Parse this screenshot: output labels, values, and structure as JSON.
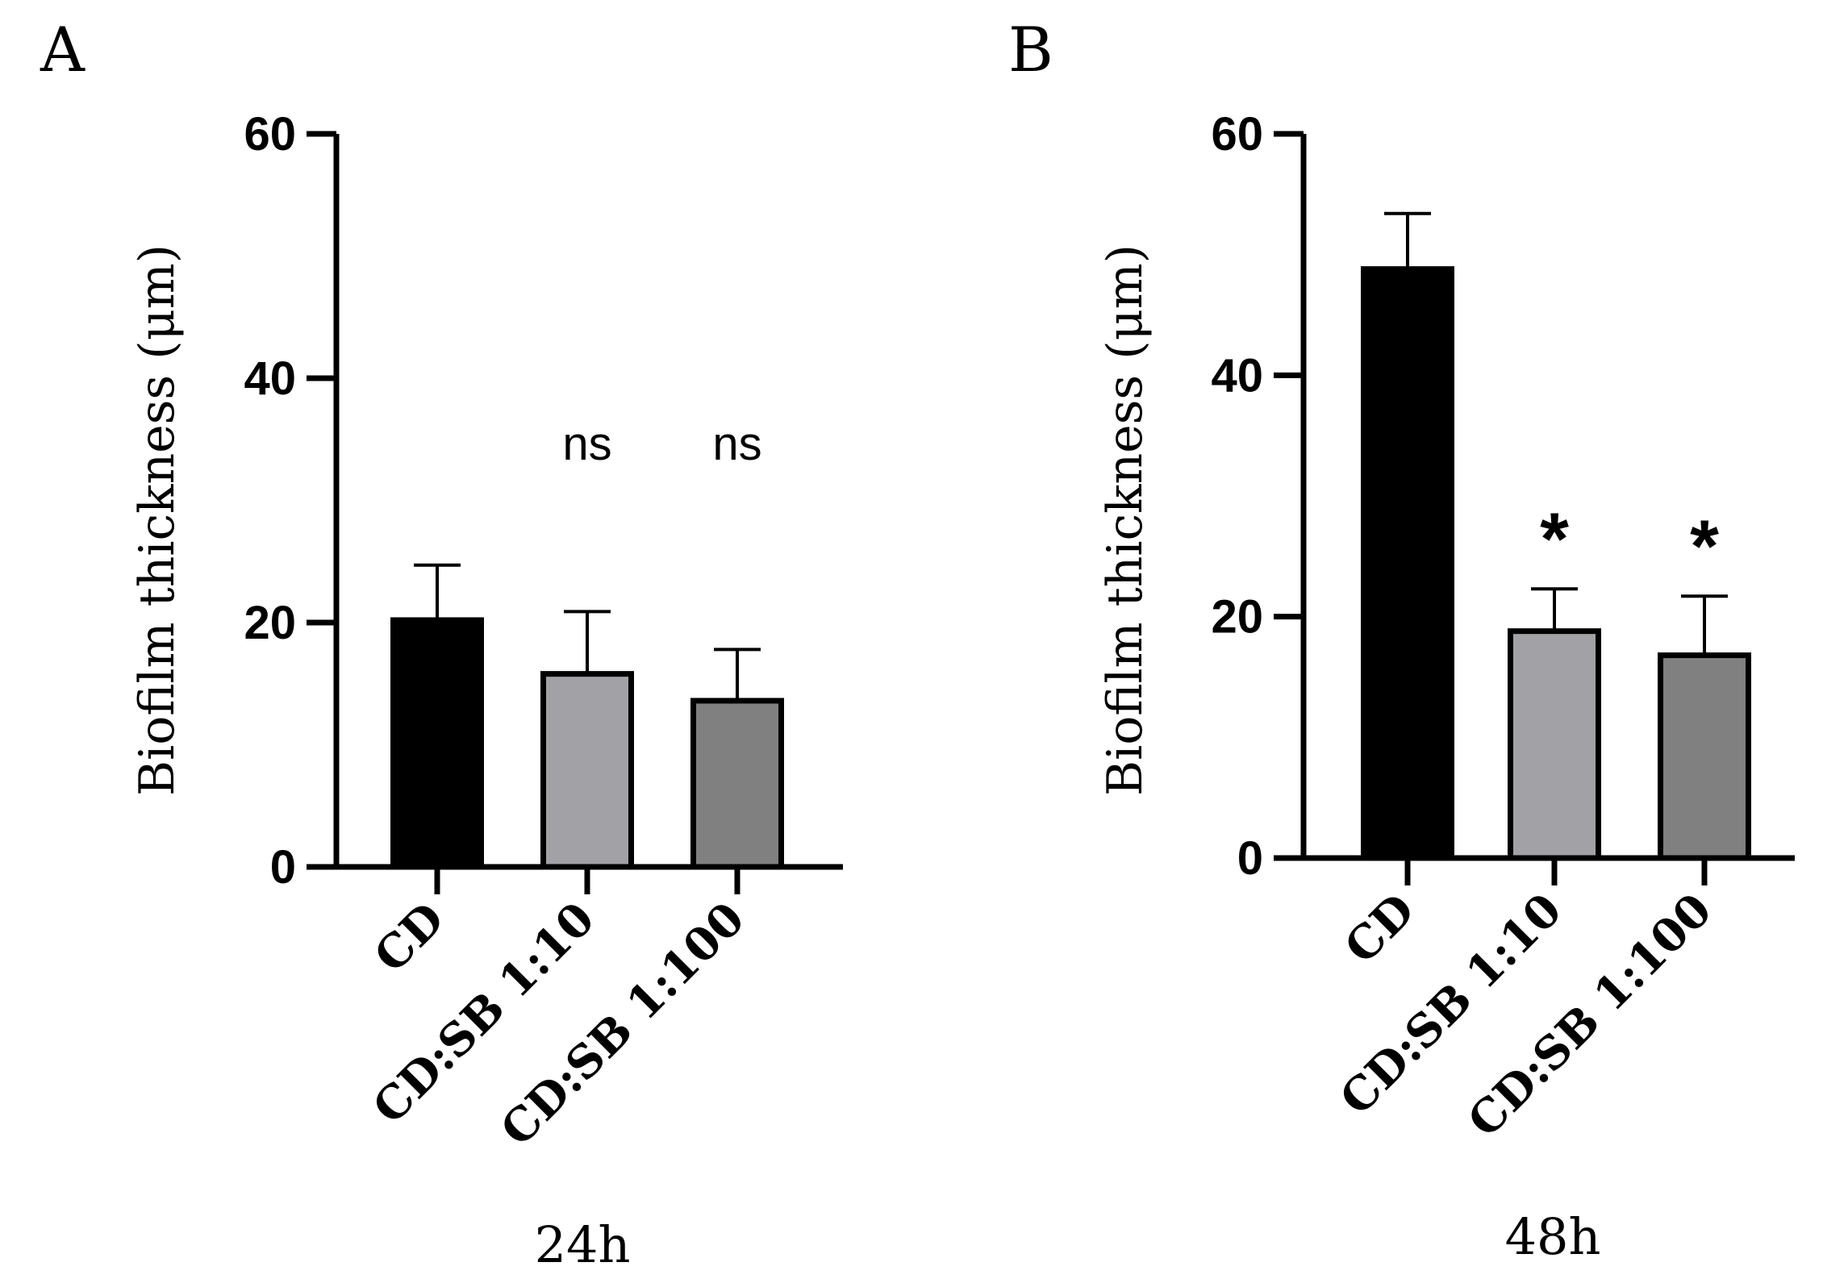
{
  "chart_data": [
    {
      "type": "bar",
      "panel_label": "A",
      "title": "",
      "xlabel": "24h",
      "ylabel": "Biofilm thickness (μm)",
      "ylim": [
        0,
        60
      ],
      "yticks": [
        "0",
        "20",
        "40",
        "60"
      ],
      "categories": [
        "CD",
        "CD:SB 1:10",
        "CD:SB 1:100"
      ],
      "values": [
        20.2,
        15.8,
        13.6
      ],
      "errors": [
        4.5,
        5.1,
        4.2
      ],
      "significance": [
        "",
        "ns",
        "ns"
      ],
      "bar_colors": [
        "#000000",
        "#a2a2a6",
        "#808080"
      ]
    },
    {
      "type": "bar",
      "panel_label": "B",
      "title": "",
      "xlabel": "48h",
      "ylabel": "Biofilm thickness (μm)",
      "ylim": [
        0,
        60
      ],
      "yticks": [
        "0",
        "20",
        "40",
        "60"
      ],
      "categories": [
        "CD",
        "CD:SB 1:10",
        "CD:SB 1:100"
      ],
      "values": [
        48.8,
        18.8,
        16.8
      ],
      "errors": [
        4.6,
        3.5,
        4.9
      ],
      "significance": [
        "",
        "*",
        "*"
      ],
      "bar_colors": [
        "#000000",
        "#a2a2a6",
        "#808080"
      ]
    }
  ]
}
